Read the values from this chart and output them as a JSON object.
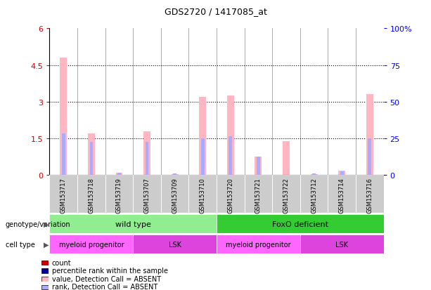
{
  "title": "GDS2720 / 1417085_at",
  "samples": [
    "GSM153717",
    "GSM153718",
    "GSM153719",
    "GSM153707",
    "GSM153709",
    "GSM153710",
    "GSM153720",
    "GSM153721",
    "GSM153722",
    "GSM153712",
    "GSM153714",
    "GSM153716"
  ],
  "absent_value_bars": [
    4.8,
    1.7,
    0.1,
    1.8,
    0.05,
    3.2,
    3.25,
    0.75,
    1.4,
    0.05,
    0.2,
    3.3
  ],
  "absent_rank_bars": [
    1.7,
    1.35,
    0.1,
    1.35,
    0.07,
    1.5,
    1.6,
    0.75,
    0,
    0.07,
    0.15,
    1.5
  ],
  "ylim_left": [
    0,
    6
  ],
  "ylim_right": [
    0,
    100
  ],
  "yticks_left": [
    0,
    1.5,
    3.0,
    4.5,
    6.0
  ],
  "ytick_labels_left": [
    "0",
    "1.5",
    "3",
    "4.5",
    "6"
  ],
  "yticks_right": [
    0,
    25,
    50,
    75,
    100
  ],
  "ytick_labels_right": [
    "0",
    "25",
    "50",
    "75",
    "100%"
  ],
  "genotype_groups": [
    {
      "label": "wild type",
      "start": 0,
      "end": 6,
      "color": "#90EE90"
    },
    {
      "label": "FoxO deficient",
      "start": 6,
      "end": 12,
      "color": "#33CC33"
    }
  ],
  "cell_type_groups": [
    {
      "label": "myeloid progenitor",
      "start": 0,
      "end": 3,
      "color": "#FF66FF"
    },
    {
      "label": "LSK",
      "start": 3,
      "end": 6,
      "color": "#DD44DD"
    },
    {
      "label": "myeloid progenitor",
      "start": 6,
      "end": 9,
      "color": "#FF66FF"
    },
    {
      "label": "LSK",
      "start": 9,
      "end": 12,
      "color": "#DD44DD"
    }
  ],
  "color_absent_value": "#FFB6C1",
  "color_absent_rank": "#AAAAFF",
  "color_count": "#CC0000",
  "color_rank": "#000099",
  "legend_items": [
    {
      "label": "count",
      "color": "#CC0000"
    },
    {
      "label": "percentile rank within the sample",
      "color": "#000099"
    },
    {
      "label": "value, Detection Call = ABSENT",
      "color": "#FFB6C1"
    },
    {
      "label": "rank, Detection Call = ABSENT",
      "color": "#AAAAFF"
    }
  ]
}
